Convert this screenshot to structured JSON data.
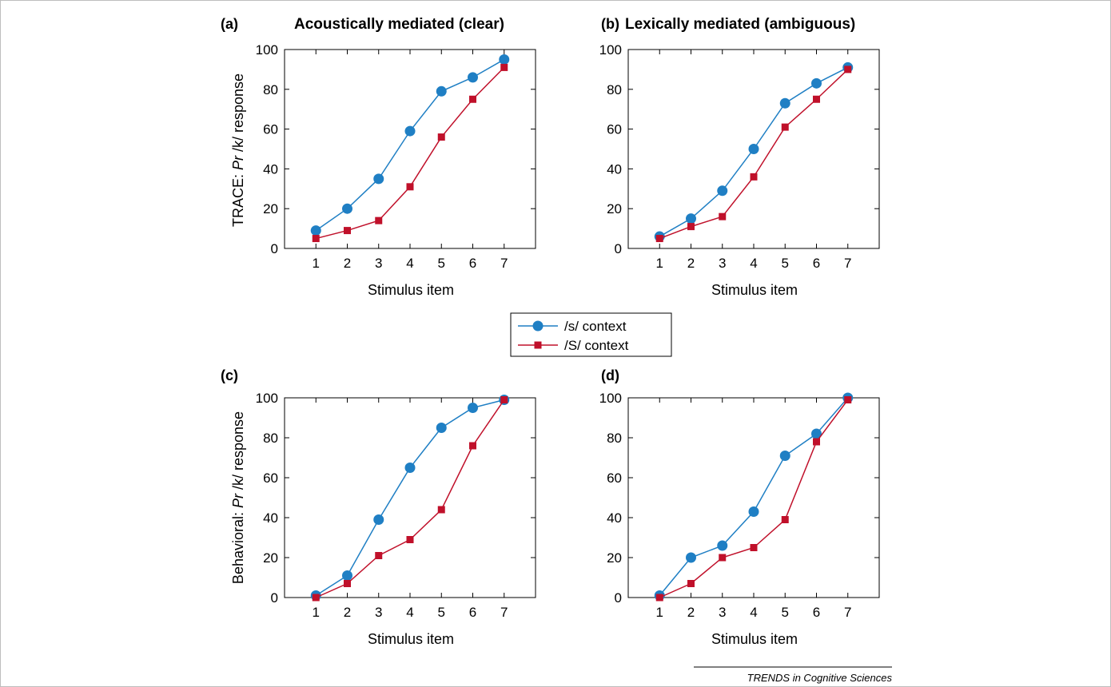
{
  "colors": {
    "s_context": "#1f7fc4",
    "S_context": "#c0102a",
    "axes": "#000000"
  },
  "legend": {
    "items": [
      {
        "label": "/s/ context",
        "marker": "circle"
      },
      {
        "label": "/S/ context",
        "marker": "square"
      }
    ]
  },
  "ylabels": {
    "top": {
      "prefix": "TRACE: ",
      "italic": "Pr",
      "suffix": " /k/ response"
    },
    "bottom": {
      "prefix": "Behavioral: ",
      "italic": "Pr",
      "suffix": " /k/ response"
    }
  },
  "footer": "TRENDS in Cognitive Sciences",
  "chart_data": [
    {
      "type": "line",
      "letter": "(a)",
      "title": "Acoustically mediated (clear)",
      "xlabel": "Stimulus item",
      "x": [
        1,
        2,
        3,
        4,
        5,
        6,
        7
      ],
      "xlim": [
        0,
        8
      ],
      "ylim": [
        0,
        100
      ],
      "yticks": [
        0,
        20,
        40,
        60,
        80,
        100
      ],
      "grid": false,
      "series": [
        {
          "name": "/s/ context",
          "values": [
            9,
            20,
            35,
            59,
            79,
            86,
            95
          ]
        },
        {
          "name": "/S/ context",
          "values": [
            5,
            9,
            14,
            31,
            56,
            75,
            91
          ]
        }
      ]
    },
    {
      "type": "line",
      "letter": "(b)",
      "title": "Lexically mediated (ambiguous)",
      "xlabel": "Stimulus item",
      "x": [
        1,
        2,
        3,
        4,
        5,
        6,
        7
      ],
      "xlim": [
        0,
        8
      ],
      "ylim": [
        0,
        100
      ],
      "yticks": [
        0,
        20,
        40,
        60,
        80,
        100
      ],
      "grid": false,
      "series": [
        {
          "name": "/s/ context",
          "values": [
            6,
            15,
            29,
            50,
            73,
            83,
            91
          ]
        },
        {
          "name": "/S/ context",
          "values": [
            5,
            11,
            16,
            36,
            61,
            75,
            90
          ]
        }
      ]
    },
    {
      "type": "line",
      "letter": "(c)",
      "title": "",
      "xlabel": "Stimulus item",
      "x": [
        1,
        2,
        3,
        4,
        5,
        6,
        7
      ],
      "xlim": [
        0,
        8
      ],
      "ylim": [
        0,
        100
      ],
      "yticks": [
        0,
        20,
        40,
        60,
        80,
        100
      ],
      "grid": false,
      "series": [
        {
          "name": "/s/ context",
          "values": [
            1,
            11,
            39,
            65,
            85,
            95,
            99
          ]
        },
        {
          "name": "/S/ context",
          "values": [
            0,
            7,
            21,
            29,
            44,
            76,
            99
          ]
        }
      ]
    },
    {
      "type": "line",
      "letter": "(d)",
      "title": "",
      "xlabel": "Stimulus item",
      "x": [
        1,
        2,
        3,
        4,
        5,
        6,
        7
      ],
      "xlim": [
        0,
        8
      ],
      "ylim": [
        0,
        100
      ],
      "yticks": [
        0,
        20,
        40,
        60,
        80,
        100
      ],
      "grid": false,
      "series": [
        {
          "name": "/s/ context",
          "values": [
            1,
            20,
            26,
            43,
            71,
            82,
            100
          ]
        },
        {
          "name": "/S/ context",
          "values": [
            0,
            7,
            20,
            25,
            39,
            78,
            99
          ]
        }
      ]
    }
  ]
}
